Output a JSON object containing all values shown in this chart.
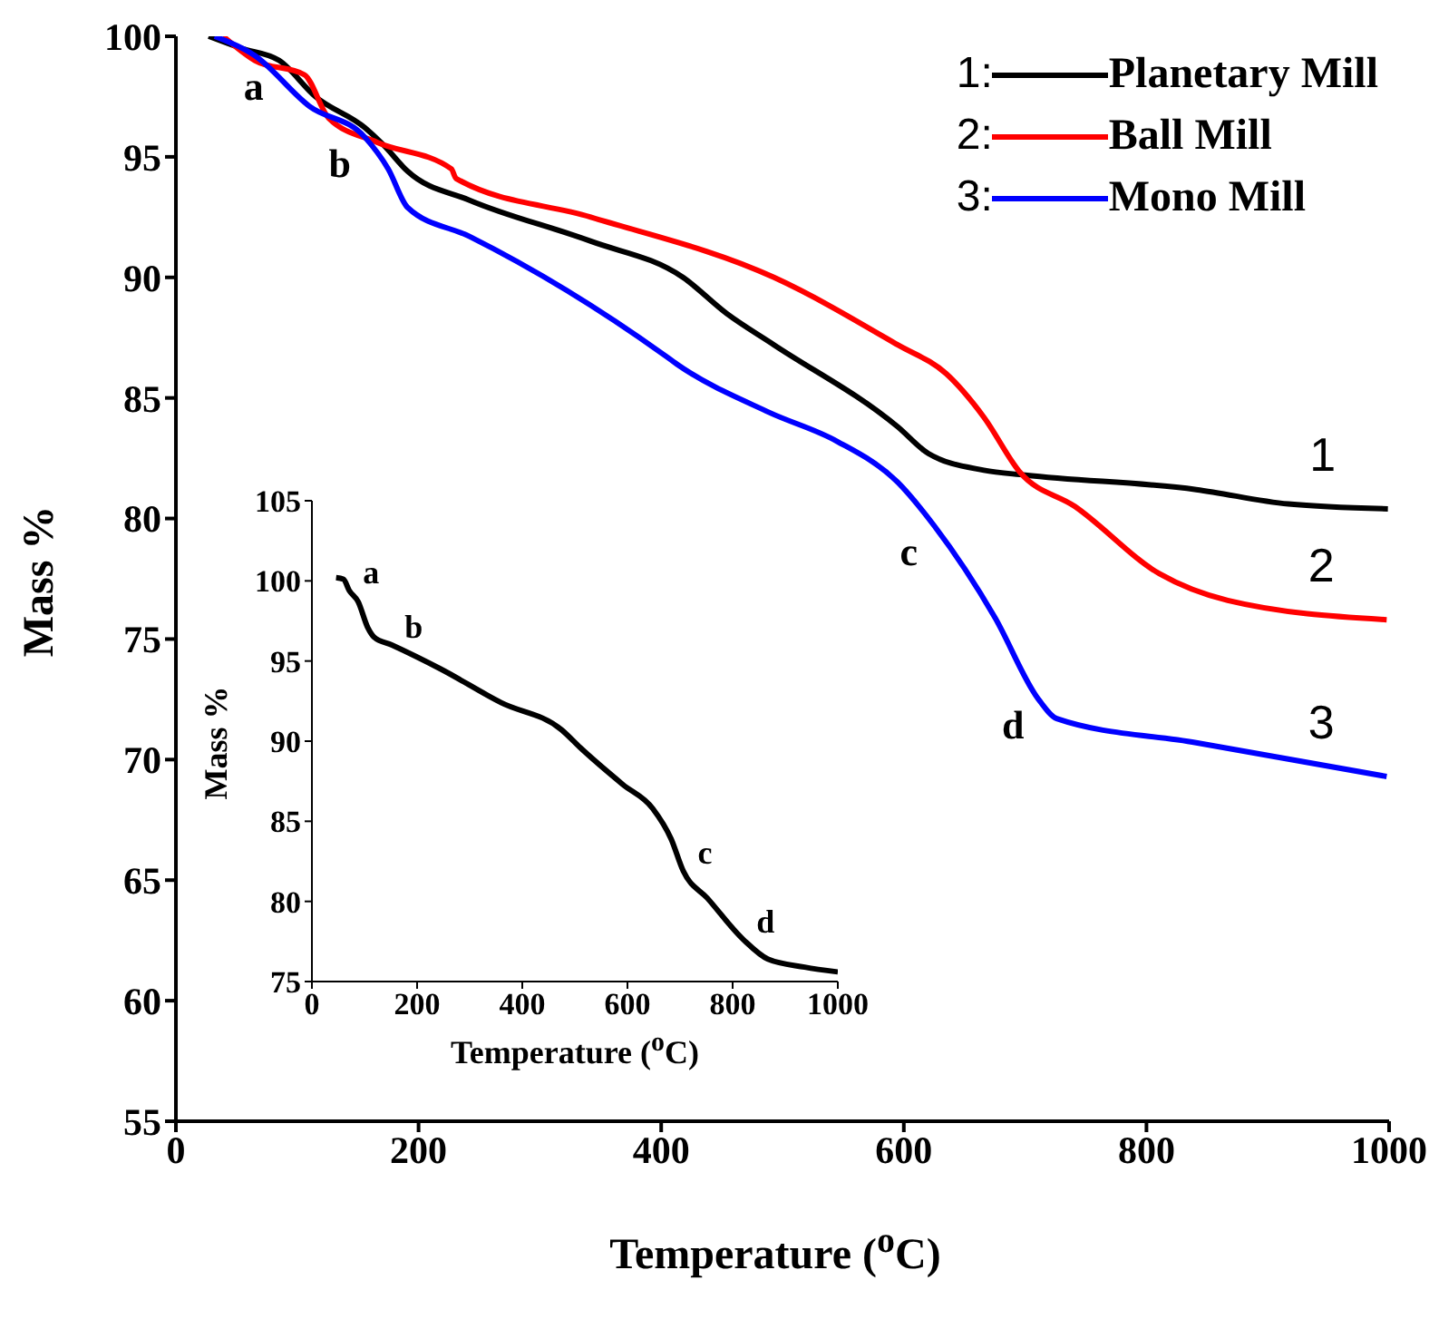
{
  "chart_data": [
    {
      "type": "line",
      "xlabel": "Temperature ($^{o}$C)",
      "ylabel": "Mass %",
      "xlim": [
        0,
        1000
      ],
      "xticks": [
        0,
        200,
        400,
        600,
        800,
        1000
      ],
      "ylim": [
        55,
        100
      ],
      "yticks": [
        55,
        60,
        65,
        70,
        75,
        80,
        85,
        90,
        95,
        100
      ],
      "legend": "top right",
      "marker": "none",
      "line_style": "solid",
      "series": [
        {
          "name": "Planetary Mill",
          "color": "#000000",
          "x": [
            27,
            54,
            85,
            115,
            156,
            171,
            191,
            242,
            342,
            418,
            454,
            493,
            595,
            620,
            666,
            700,
            841,
            917,
            999
          ],
          "values": [
            100,
            99.5,
            99.0,
            97.5,
            96.2,
            95.5,
            94.4,
            93.2,
            91.5,
            90.0,
            88.5,
            87.2,
            83.8,
            82.7,
            82.0,
            81.8,
            81.2,
            80.6,
            80.4
          ]
        },
        {
          "name": "Ball Mill",
          "color": "#ff0000",
          "x": [
            39,
            65,
            106,
            126,
            166,
            227,
            231,
            342,
            493,
            595,
            635,
            666,
            696,
            741,
            811,
            867,
            998
          ],
          "values": [
            100,
            99.0,
            98.4,
            96.6,
            95.6,
            94.5,
            94.1,
            92.5,
            90.0,
            87.2,
            86.0,
            84.2,
            81.9,
            80.5,
            77.7,
            76.6,
            75.8
          ]
        },
        {
          "name": "Mono Mill",
          "color": "#0000ff",
          "x": [
            32,
            65,
            110,
            156,
            175,
            191,
            242,
            402,
            413,
            489,
            545,
            595,
            625,
            675,
            711,
            726,
            841,
            998
          ],
          "values": [
            100,
            99.2,
            97.1,
            95.8,
            94.5,
            92.9,
            91.7,
            86.8,
            86.4,
            84.4,
            83.2,
            81.5,
            79.7,
            75.9,
            72.5,
            71.7,
            70.7,
            69.3
          ]
        }
      ],
      "annotations": [
        "1:",
        "2:",
        "3:",
        {
          "text": "a",
          "x": 85,
          "y": 99.0
        },
        {
          "text": "b",
          "x": 156,
          "y": 95.8
        },
        {
          "text": "c",
          "x": 625,
          "y": 79.7
        },
        {
          "text": "d",
          "x": 711,
          "y": 72.5
        },
        {
          "text": "1",
          "x": 999,
          "y": 80.4
        },
        {
          "text": "2",
          "x": 998,
          "y": 75.8
        },
        {
          "text": "3",
          "x": 998,
          "y": 69.3
        }
      ]
    },
    {
      "type": "line",
      "xlabel": "Temperature ($^{o}$C)",
      "ylabel": "Mass %",
      "xlim": [
        0,
        1000
      ],
      "xticks": [
        0,
        200,
        400,
        600,
        800,
        1000
      ],
      "ylim": [
        75,
        105
      ],
      "yticks": [
        75,
        80,
        85,
        90,
        95,
        100,
        105
      ],
      "marker": "none",
      "line_style": "solid",
      "series": [
        {
          "color": "#000000",
          "x": [
            46,
            60,
            71,
            88,
            106,
            118,
            152,
            245,
            360,
            475,
            510,
            591,
            648,
            683,
            706,
            752,
            821,
            867,
            937,
            1000
          ],
          "values": [
            100.2,
            100.1,
            99.4,
            98.7,
            97.1,
            96.5,
            96.0,
            94.5,
            92.4,
            90.7,
            89.6,
            87.3,
            85.8,
            83.9,
            81.9,
            80.2,
            77.6,
            76.4,
            75.9,
            75.6
          ]
        }
      ],
      "annotations": [
        {
          "text": "a",
          "x": 71,
          "y": 99.4
        },
        {
          "text": "b",
          "x": 152,
          "y": 96.0
        },
        {
          "text": "c",
          "x": 706,
          "y": 81.9
        },
        {
          "text": "d",
          "x": 821,
          "y": 77.6
        }
      ]
    }
  ]
}
